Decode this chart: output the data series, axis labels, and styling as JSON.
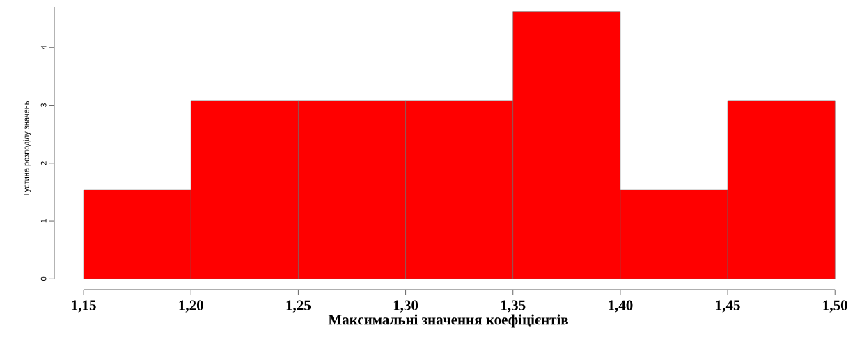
{
  "chart_data": {
    "type": "histogram",
    "bins": [
      1.15,
      1.2,
      1.25,
      1.3,
      1.35,
      1.4,
      1.45,
      1.5
    ],
    "values": [
      1.54,
      3.08,
      3.08,
      3.08,
      4.62,
      1.54,
      3.08
    ],
    "color": "#ff0000",
    "xlabel": "Максимальні значення коефіцієнтів",
    "ylabel": "Густина розподілу значень",
    "xlim": [
      1.15,
      1.5
    ],
    "xticks": [
      {
        "value": 1.15,
        "label": "1,15"
      },
      {
        "value": 1.2,
        "label": "1,20"
      },
      {
        "value": 1.25,
        "label": "1,25"
      },
      {
        "value": 1.3,
        "label": "1,30"
      },
      {
        "value": 1.35,
        "label": "1,35"
      },
      {
        "value": 1.4,
        "label": "1,40"
      },
      {
        "value": 1.45,
        "label": "1,45"
      },
      {
        "value": 1.5,
        "label": "1,50"
      }
    ],
    "ylim": [
      0,
      4.7
    ],
    "yticks": [
      0,
      1,
      2,
      3,
      4
    ],
    "grid": false
  }
}
